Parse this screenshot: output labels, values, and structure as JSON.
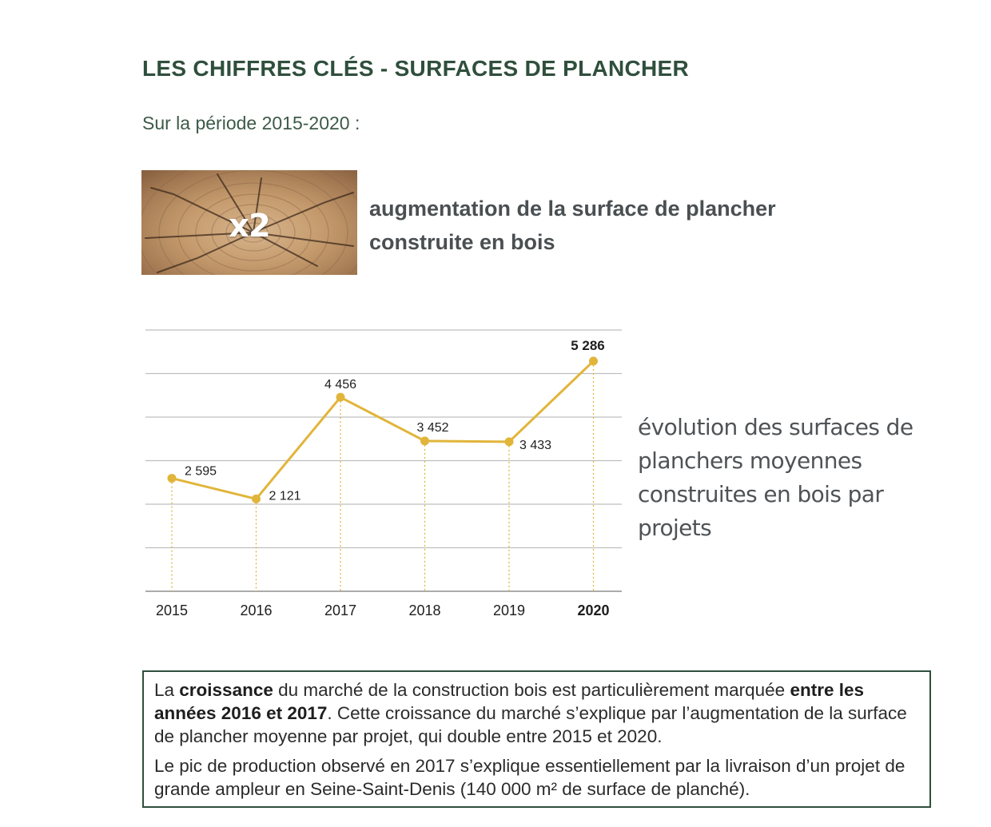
{
  "header": {
    "title": "LES CHIFFRES CLÉS - SURFACES DE PLANCHER",
    "subtitle": "Sur la période 2015-2020 :"
  },
  "key_fact": {
    "badge": "x2",
    "text": "augmentation de la surface de plancher construite en bois"
  },
  "chart_description": "évolution des surfaces de planchers moyennes construites en bois par projets",
  "chart_data": {
    "type": "line",
    "title": "",
    "xlabel": "",
    "ylabel": "",
    "categories": [
      "2015",
      "2016",
      "2017",
      "2018",
      "2019",
      "2020"
    ],
    "values": [
      2595,
      2121,
      4456,
      3452,
      3433,
      5286
    ],
    "value_labels": [
      "2 595",
      "2 121",
      "4 456",
      "3 452",
      "3 433",
      "5 286"
    ],
    "ylim": [
      0,
      6000
    ],
    "grid": true,
    "highlight_category": "2020",
    "line_color": "#e1b53a"
  },
  "info_box": {
    "para1": {
      "t1": "La ",
      "b1": "croissance",
      "t2": " du marché de la construction bois est particulièrement marquée ",
      "b2": "entre les années 2016 et 2017",
      "t3": ". Cette croissance du marché s’explique par l’augmentation de la surface de plancher moyenne par projet, qui double entre 2015 et 2020."
    },
    "para2": "Le pic de production observé en 2017 s’explique essentiellement par la livraison d’un projet de grande ampleur en Seine-Saint-Denis (140 000 m² de surface de planché)."
  },
  "colors": {
    "title": "#2f4f3c",
    "accent": "#e1b53a",
    "grid": "#bfbfbf"
  }
}
